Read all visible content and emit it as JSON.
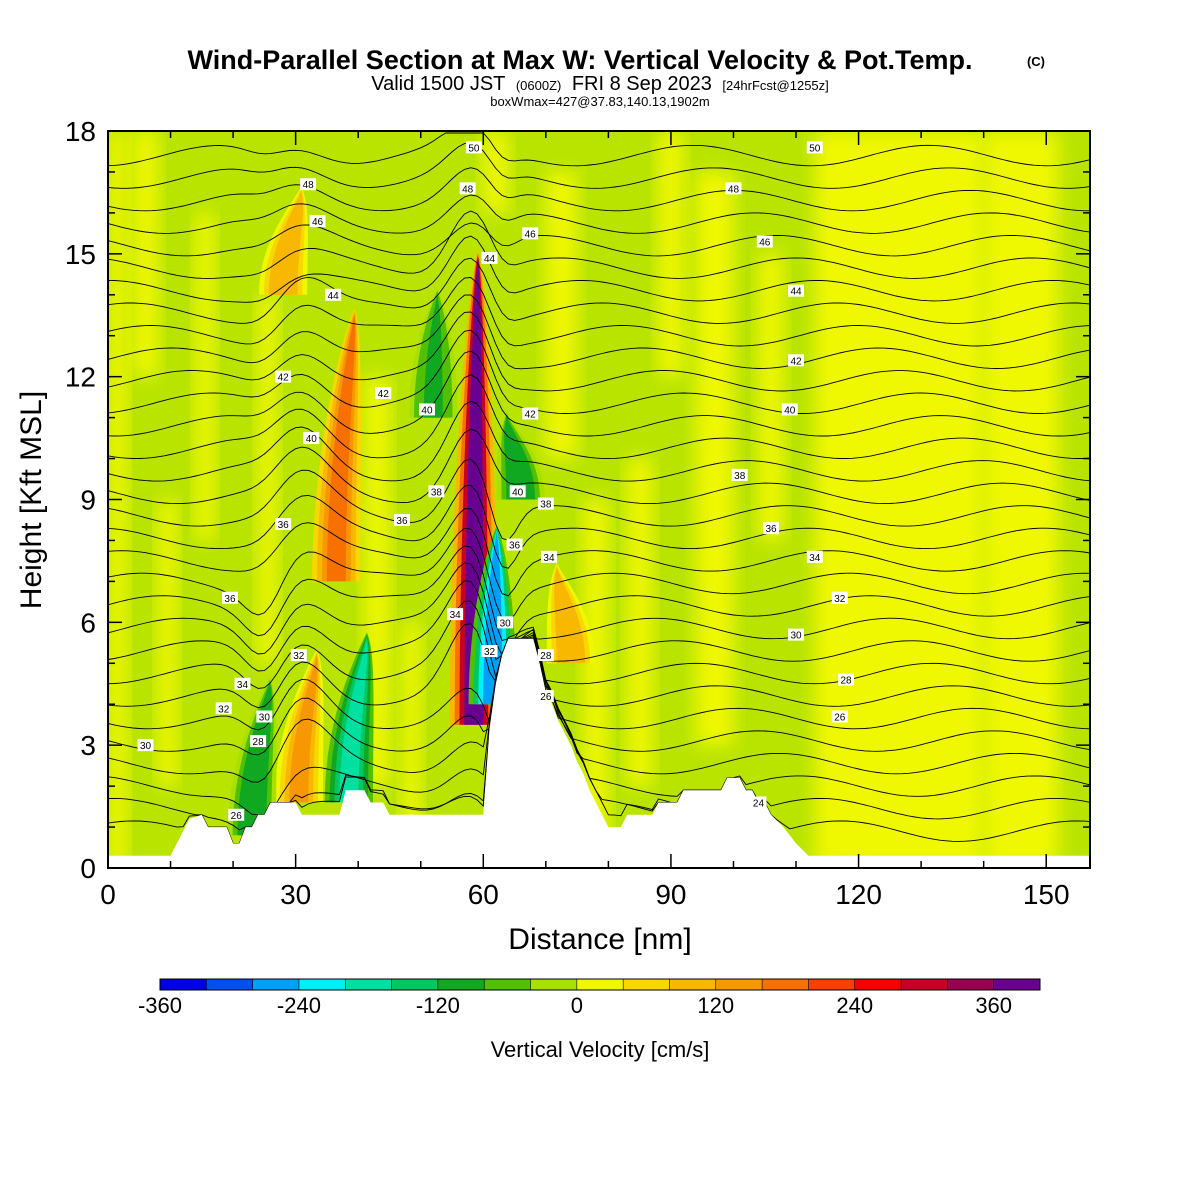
{
  "title": {
    "main": "Wind-Parallel Section at Max W: Vertical Velocity & Pot.Temp.",
    "copyright": "(C)",
    "valid_prefix": "Valid 1500 JST",
    "valid_z": "(0600Z)",
    "valid_date": "FRI 8 Sep 2023",
    "forecast": "[24hrFcst@1255z]",
    "boxwmax": "boxWmax=427@37.83,140.13,1902m"
  },
  "chart_data": {
    "type": "heatmap",
    "xlabel": "Distance [nm]",
    "ylabel": "Height [Kft MSL]",
    "xlim": [
      0,
      157
    ],
    "ylim": [
      0,
      18
    ],
    "xticks": [
      0,
      30,
      60,
      90,
      120,
      150
    ],
    "yticks": [
      0,
      3,
      6,
      9,
      12,
      15,
      18
    ],
    "colorbar": {
      "title": "Vertical Velocity [cm/s]",
      "range": [
        -360,
        400
      ],
      "tick_values": [
        -360,
        -240,
        -120,
        0,
        120,
        240,
        360
      ],
      "tick_labels": [
        "-360",
        "-240",
        "-120",
        "0",
        "120",
        "240",
        "360"
      ],
      "colors": [
        "#0000e8",
        "#0050f0",
        "#00a0f8",
        "#00f0f8",
        "#00e0a0",
        "#00c860",
        "#10a820",
        "#50c000",
        "#a8e000",
        "#f0f800",
        "#f8d800",
        "#f8b800",
        "#f89800",
        "#f87000",
        "#f84000",
        "#f80000",
        "#c80028",
        "#980050",
        "#680090"
      ]
    },
    "w_features": [
      {
        "kind": "updraft",
        "x": 58.5,
        "y_bottom": 3.5,
        "y_top": 14.9,
        "peak": 390
      },
      {
        "kind": "downdraft",
        "x": 61.5,
        "y_bottom": 4.0,
        "y_top": 8.2,
        "peak": -280
      },
      {
        "kind": "updraft",
        "x": 30.5,
        "y_bottom": 1.6,
        "y_top": 5.2,
        "peak": 130
      },
      {
        "kind": "updraft",
        "x": 36.5,
        "y_bottom": 7.0,
        "y_top": 13.5,
        "peak": 160
      },
      {
        "kind": "updraft",
        "x": 28,
        "y_bottom": 14.0,
        "y_top": 16.5,
        "peak": 110
      },
      {
        "kind": "downdraft",
        "x": 38.5,
        "y_bottom": 1.6,
        "y_top": 5.6,
        "peak": -200
      },
      {
        "kind": "downdraft",
        "x": 23,
        "y_bottom": 0.8,
        "y_top": 4.5,
        "peak": -110
      },
      {
        "kind": "updraft",
        "x": 74,
        "y_bottom": 5.0,
        "y_top": 7.3,
        "peak": 110
      },
      {
        "kind": "downdraft",
        "x": 52,
        "y_bottom": 11.0,
        "y_top": 14.0,
        "peak": -90
      },
      {
        "kind": "downdraft",
        "x": 66,
        "y_bottom": 9.0,
        "y_top": 11.0,
        "peak": -110
      }
    ],
    "theta_levels": [
      24,
      26,
      28,
      30,
      32,
      34,
      36,
      38,
      40,
      42,
      44,
      46,
      48,
      50
    ],
    "theta_labels": [
      {
        "text": "24",
        "x": 104,
        "y": 1.6
      },
      {
        "text": "26",
        "x": 117,
        "y": 3.7
      },
      {
        "text": "28",
        "x": 118,
        "y": 4.6
      },
      {
        "text": "30",
        "x": 110,
        "y": 5.7
      },
      {
        "text": "32",
        "x": 117,
        "y": 6.6
      },
      {
        "text": "34",
        "x": 113,
        "y": 7.6
      },
      {
        "text": "36",
        "x": 106,
        "y": 8.3
      },
      {
        "text": "38",
        "x": 101,
        "y": 9.6
      },
      {
        "text": "40",
        "x": 109,
        "y": 11.2
      },
      {
        "text": "42",
        "x": 110,
        "y": 12.4
      },
      {
        "text": "44",
        "x": 110,
        "y": 14.1
      },
      {
        "text": "46",
        "x": 105,
        "y": 15.3
      },
      {
        "text": "48",
        "x": 100,
        "y": 16.6
      },
      {
        "text": "50",
        "x": 113,
        "y": 17.6
      },
      {
        "text": "30",
        "x": 6,
        "y": 3.0
      },
      {
        "text": "32",
        "x": 18.5,
        "y": 3.9
      },
      {
        "text": "34",
        "x": 21.5,
        "y": 4.5
      },
      {
        "text": "36",
        "x": 19.5,
        "y": 6.6
      },
      {
        "text": "26",
        "x": 20.5,
        "y": 1.3
      },
      {
        "text": "28",
        "x": 24,
        "y": 3.1
      },
      {
        "text": "30",
        "x": 25,
        "y": 3.7
      },
      {
        "text": "32",
        "x": 30.5,
        "y": 5.2
      },
      {
        "text": "36",
        "x": 28,
        "y": 8.4
      },
      {
        "text": "40",
        "x": 32.5,
        "y": 10.5
      },
      {
        "text": "42",
        "x": 28,
        "y": 12.0
      },
      {
        "text": "44",
        "x": 36,
        "y": 14.0
      },
      {
        "text": "46",
        "x": 33.5,
        "y": 15.8
      },
      {
        "text": "48",
        "x": 32,
        "y": 16.7
      },
      {
        "text": "36",
        "x": 47,
        "y": 8.5
      },
      {
        "text": "38",
        "x": 52.5,
        "y": 9.2
      },
      {
        "text": "42",
        "x": 44,
        "y": 11.6
      },
      {
        "text": "40",
        "x": 51,
        "y": 11.2
      },
      {
        "text": "34",
        "x": 55.5,
        "y": 6.2
      },
      {
        "text": "48",
        "x": 57.5,
        "y": 16.6
      },
      {
        "text": "50",
        "x": 58.5,
        "y": 17.6
      },
      {
        "text": "44",
        "x": 61,
        "y": 14.9
      },
      {
        "text": "46",
        "x": 67.5,
        "y": 15.5
      },
      {
        "text": "42",
        "x": 67.5,
        "y": 11.1
      },
      {
        "text": "40",
        "x": 65.5,
        "y": 9.2
      },
      {
        "text": "38",
        "x": 70,
        "y": 8.9
      },
      {
        "text": "36",
        "x": 65,
        "y": 7.9
      },
      {
        "text": "34",
        "x": 70.5,
        "y": 7.6
      },
      {
        "text": "30",
        "x": 63.5,
        "y": 6.0
      },
      {
        "text": "32",
        "x": 61,
        "y": 5.3
      },
      {
        "text": "28",
        "x": 70,
        "y": 5.2
      },
      {
        "text": "26",
        "x": 70,
        "y": 4.2
      }
    ],
    "terrain_height_kft": [
      [
        0,
        0.3
      ],
      [
        10,
        0.3
      ],
      [
        11,
        0.6
      ],
      [
        12,
        0.9
      ],
      [
        13,
        1.2
      ],
      [
        15,
        1.3
      ],
      [
        16,
        1.0
      ],
      [
        19,
        1.0
      ],
      [
        20,
        0.6
      ],
      [
        21,
        0.6
      ],
      [
        22,
        1.0
      ],
      [
        23,
        1.0
      ],
      [
        24,
        1.3
      ],
      [
        25,
        1.3
      ],
      [
        26,
        1.6
      ],
      [
        30,
        1.6
      ],
      [
        31,
        1.3
      ],
      [
        37,
        1.3
      ],
      [
        38,
        1.9
      ],
      [
        41,
        1.9
      ],
      [
        42,
        1.6
      ],
      [
        44,
        1.6
      ],
      [
        45,
        1.3
      ],
      [
        60,
        1.3
      ],
      [
        61,
        3.4
      ],
      [
        62,
        4.5
      ],
      [
        63,
        5.2
      ],
      [
        64,
        5.6
      ],
      [
        68,
        5.6
      ],
      [
        69,
        5.0
      ],
      [
        70,
        4.3
      ],
      [
        71,
        4.0
      ],
      [
        72,
        3.6
      ],
      [
        73,
        3.3
      ],
      [
        74,
        3.0
      ],
      [
        75,
        2.6
      ],
      [
        76,
        2.3
      ],
      [
        77,
        1.9
      ],
      [
        78,
        1.6
      ],
      [
        79,
        1.3
      ],
      [
        80,
        1.0
      ],
      [
        82,
        1.0
      ],
      [
        83,
        1.3
      ],
      [
        87,
        1.3
      ],
      [
        88,
        1.6
      ],
      [
        91,
        1.6
      ],
      [
        92,
        1.9
      ],
      [
        98,
        1.9
      ],
      [
        99,
        2.2
      ],
      [
        101,
        2.2
      ],
      [
        102,
        1.9
      ],
      [
        103,
        1.9
      ],
      [
        104,
        1.6
      ],
      [
        105,
        1.6
      ],
      [
        106,
        1.3
      ],
      [
        108,
        1.0
      ],
      [
        110,
        0.6
      ],
      [
        112,
        0.3
      ],
      [
        157,
        0.3
      ]
    ]
  }
}
